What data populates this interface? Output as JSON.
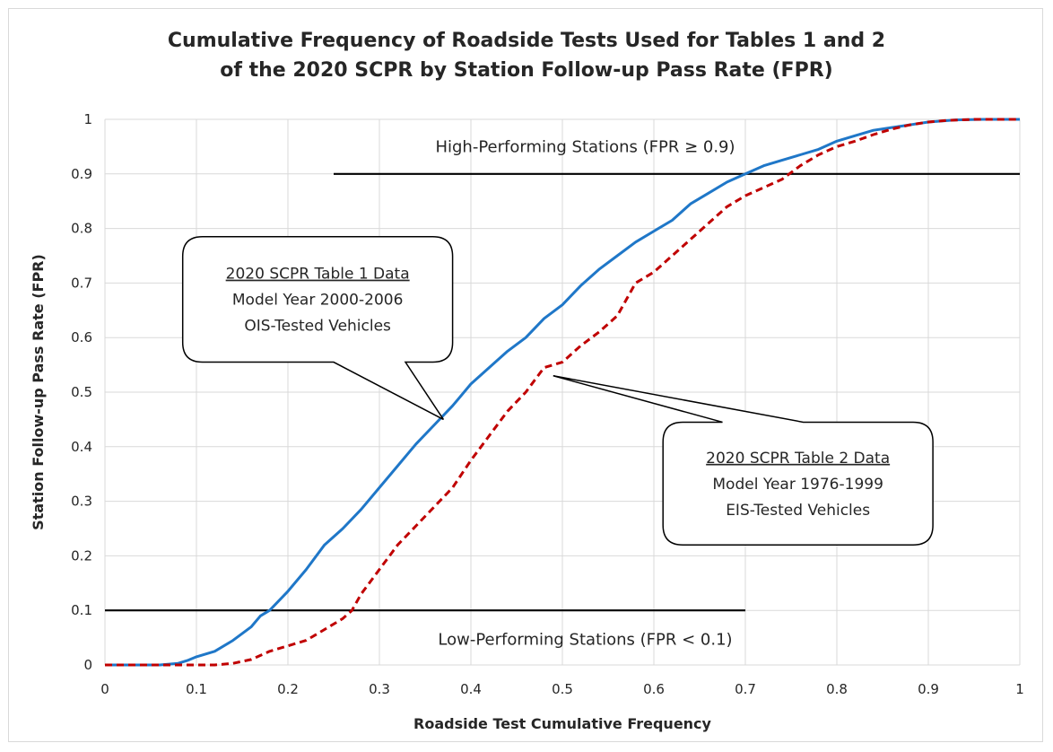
{
  "chart_data": {
    "type": "line",
    "title_lines": [
      "Cumulative Frequency of Roadside Tests Used for Tables 1 and 2",
      "of the 2020 SCPR by Station Follow-up Pass Rate (FPR)"
    ],
    "xlabel": "Roadside Test Cumulative Frequency",
    "ylabel": "Station Follow-up Pass Rate (FPR)",
    "xlim": [
      0,
      1
    ],
    "ylim": [
      0,
      1
    ],
    "x_ticks": [
      "0",
      "0.1",
      "0.2",
      "0.3",
      "0.4",
      "0.5",
      "0.6",
      "0.7",
      "0.8",
      "0.9",
      "1"
    ],
    "y_ticks": [
      "0",
      "0.1",
      "0.2",
      "0.3",
      "0.4",
      "0.5",
      "0.6",
      "0.7",
      "0.8",
      "0.9",
      "1"
    ],
    "grid": true,
    "series": [
      {
        "color": "#1f77c8",
        "dash": "solid",
        "points": [
          [
            0,
            0
          ],
          [
            0.06,
            0
          ],
          [
            0.08,
            0.003
          ],
          [
            0.09,
            0.008
          ],
          [
            0.1,
            0.015
          ],
          [
            0.12,
            0.025
          ],
          [
            0.14,
            0.045
          ],
          [
            0.16,
            0.07
          ],
          [
            0.17,
            0.09
          ],
          [
            0.18,
            0.1
          ],
          [
            0.2,
            0.135
          ],
          [
            0.22,
            0.175
          ],
          [
            0.24,
            0.22
          ],
          [
            0.26,
            0.25
          ],
          [
            0.28,
            0.285
          ],
          [
            0.3,
            0.325
          ],
          [
            0.32,
            0.365
          ],
          [
            0.34,
            0.405
          ],
          [
            0.36,
            0.44
          ],
          [
            0.38,
            0.475
          ],
          [
            0.4,
            0.515
          ],
          [
            0.42,
            0.545
          ],
          [
            0.44,
            0.575
          ],
          [
            0.46,
            0.6
          ],
          [
            0.48,
            0.635
          ],
          [
            0.5,
            0.66
          ],
          [
            0.52,
            0.695
          ],
          [
            0.54,
            0.725
          ],
          [
            0.56,
            0.75
          ],
          [
            0.58,
            0.775
          ],
          [
            0.6,
            0.795
          ],
          [
            0.62,
            0.815
          ],
          [
            0.64,
            0.845
          ],
          [
            0.66,
            0.865
          ],
          [
            0.68,
            0.885
          ],
          [
            0.7,
            0.9
          ],
          [
            0.72,
            0.915
          ],
          [
            0.74,
            0.925
          ],
          [
            0.76,
            0.935
          ],
          [
            0.78,
            0.945
          ],
          [
            0.8,
            0.96
          ],
          [
            0.82,
            0.97
          ],
          [
            0.84,
            0.98
          ],
          [
            0.86,
            0.985
          ],
          [
            0.88,
            0.99
          ],
          [
            0.9,
            0.995
          ],
          [
            0.93,
            0.999
          ],
          [
            0.96,
            1
          ],
          [
            1,
            1
          ]
        ]
      },
      {
        "color": "#c00000",
        "dash": "dashed",
        "points": [
          [
            0,
            0
          ],
          [
            0.12,
            0
          ],
          [
            0.14,
            0.003
          ],
          [
            0.16,
            0.01
          ],
          [
            0.18,
            0.025
          ],
          [
            0.2,
            0.035
          ],
          [
            0.22,
            0.045
          ],
          [
            0.24,
            0.065
          ],
          [
            0.26,
            0.085
          ],
          [
            0.27,
            0.1
          ],
          [
            0.28,
            0.13
          ],
          [
            0.3,
            0.175
          ],
          [
            0.32,
            0.22
          ],
          [
            0.34,
            0.255
          ],
          [
            0.36,
            0.29
          ],
          [
            0.38,
            0.325
          ],
          [
            0.4,
            0.375
          ],
          [
            0.42,
            0.42
          ],
          [
            0.44,
            0.465
          ],
          [
            0.46,
            0.5
          ],
          [
            0.48,
            0.545
          ],
          [
            0.5,
            0.555
          ],
          [
            0.52,
            0.585
          ],
          [
            0.54,
            0.61
          ],
          [
            0.56,
            0.64
          ],
          [
            0.58,
            0.7
          ],
          [
            0.6,
            0.72
          ],
          [
            0.62,
            0.75
          ],
          [
            0.64,
            0.78
          ],
          [
            0.66,
            0.81
          ],
          [
            0.68,
            0.84
          ],
          [
            0.7,
            0.86
          ],
          [
            0.72,
            0.875
          ],
          [
            0.74,
            0.89
          ],
          [
            0.76,
            0.915
          ],
          [
            0.78,
            0.935
          ],
          [
            0.8,
            0.95
          ],
          [
            0.82,
            0.96
          ],
          [
            0.84,
            0.972
          ],
          [
            0.86,
            0.982
          ],
          [
            0.88,
            0.99
          ],
          [
            0.9,
            0.995
          ],
          [
            0.92,
            0.998
          ],
          [
            0.95,
            1
          ],
          [
            1,
            1
          ]
        ]
      }
    ],
    "reference_lines": [
      {
        "name": "high-performing-line",
        "y": 0.9,
        "x_start": 0.25,
        "x_end": 1,
        "color": "#000000"
      },
      {
        "name": "low-performing-line",
        "y": 0.1,
        "x_start": 0,
        "x_end": 0.7,
        "color": "#000000"
      }
    ],
    "annotations": [
      {
        "name": "high-performing-label",
        "text": "High-Performing Stations (FPR ≥ 0.9)",
        "x": 0.525,
        "y": 0.95
      },
      {
        "name": "low-performing-label",
        "text": "Low-Performing Stations (FPR < 0.1)",
        "x": 0.525,
        "y": 0.047
      }
    ],
    "callouts": [
      {
        "name": "callout-table1",
        "lines": [
          "2020 SCPR Table 1 Data",
          "Model Year 2000-2006",
          "OIS-Tested Vehicles"
        ],
        "box": {
          "x0": 0.085,
          "y0": 0.555,
          "x1": 0.38,
          "y1": 0.785
        },
        "pointer_to": [
          0.37,
          0.45
        ],
        "pointer_base": [
          0.25,
          0.33
        ]
      },
      {
        "name": "callout-table2",
        "lines": [
          "2020 SCPR Table 2 Data",
          "Model Year 1976-1999",
          "EIS-Tested Vehicles"
        ],
        "box": {
          "x0": 0.61,
          "y0": 0.22,
          "x1": 0.905,
          "y1": 0.445
        },
        "pointer_to": [
          0.49,
          0.53
        ],
        "pointer_base": [
          0.675,
          0.79
        ]
      }
    ]
  }
}
